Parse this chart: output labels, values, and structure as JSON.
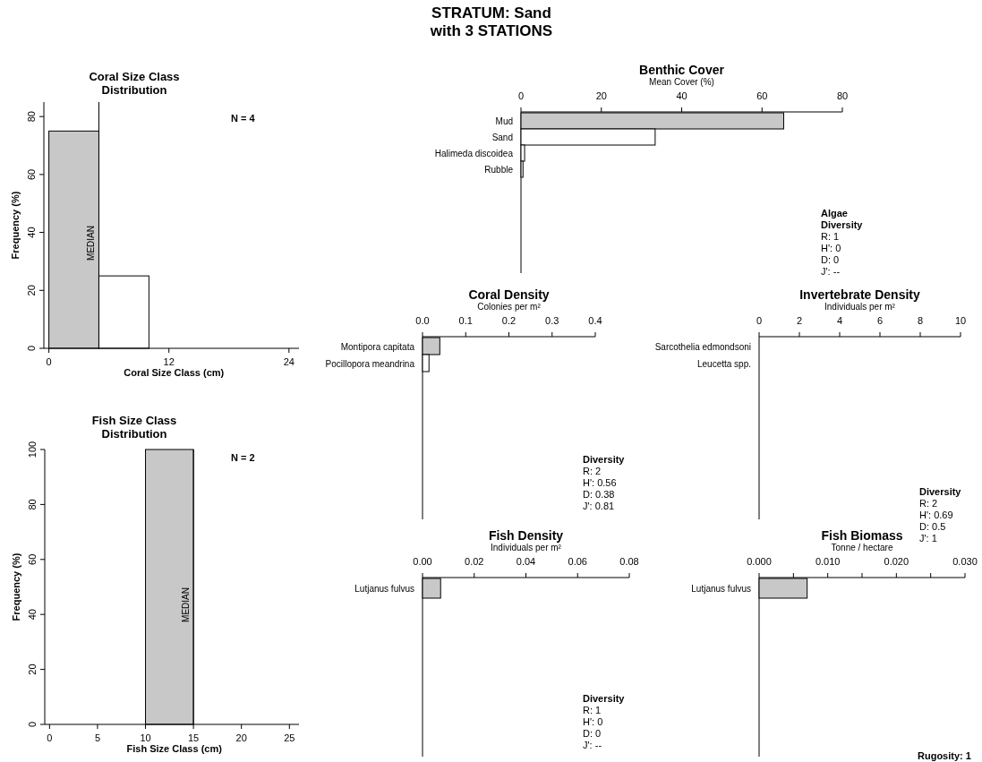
{
  "chart_data": [
    {
      "type": "other",
      "title": "STRATUM: Sand\nwith 3 STATIONS",
      "annotations": [
        "Rugosity: 1"
      ]
    },
    {
      "type": "histogram",
      "title": "Coral Size Class\nDistribution",
      "xlabel": "Coral Size Class (cm)",
      "ylabel": "Frequency (%)",
      "bins": [
        0,
        5,
        10
      ],
      "values": [
        75,
        25
      ],
      "colors": [
        "#c8c8c8",
        "#ffffff"
      ],
      "xlim": [
        -0.5,
        25
      ],
      "xticks": [
        0,
        12,
        24
      ],
      "ylim": [
        0,
        85
      ],
      "yticks": [
        0,
        20,
        40,
        60,
        80
      ],
      "ref_lines": [
        {
          "axis": "x",
          "value": 5,
          "label": "MEDIAN"
        }
      ],
      "annotations": [
        "N = 4"
      ]
    },
    {
      "type": "histogram",
      "title": "Fish Size Class\nDistribution",
      "xlabel": "Fish Size Class (cm)",
      "ylabel": "Frequency (%)",
      "bins": [
        10,
        15
      ],
      "values": [
        100
      ],
      "colors": [
        "#c8c8c8"
      ],
      "xlim": [
        -0.5,
        26
      ],
      "xticks": [
        0,
        5,
        10,
        15,
        20,
        25
      ],
      "ylim": [
        0,
        100
      ],
      "yticks": [
        0,
        20,
        40,
        60,
        80,
        100
      ],
      "ref_lines": [
        {
          "axis": "x",
          "value": 15,
          "label": "MEDIAN"
        }
      ],
      "annotations": [
        "N = 2"
      ]
    },
    {
      "type": "bar",
      "orientation": "horizontal",
      "title": "Benthic Cover",
      "xlabel": "Mean Cover (%)",
      "categories": [
        "Mud",
        "Sand",
        "Halimeda discoidea",
        "Rubble"
      ],
      "values": [
        65.4,
        33.4,
        0.9,
        0.5
      ],
      "colors": [
        "#c8c8c8",
        "#ffffff",
        "#ffffff",
        "#ffffff"
      ],
      "xlim": [
        0,
        80
      ],
      "xticks": [
        0,
        20,
        40,
        60,
        80
      ],
      "annotations": [
        "Algae\nDiversity",
        "R: 1",
        "H': 0",
        "D: 0",
        "J': --"
      ]
    },
    {
      "type": "bar",
      "orientation": "horizontal",
      "title": "Coral Density",
      "xlabel": "Colonies per m²",
      "categories": [
        "Montipora capitata",
        "Pocillopora meandrina"
      ],
      "values": [
        0.04,
        0.015
      ],
      "colors": [
        "#c8c8c8",
        "#ffffff"
      ],
      "xlim": [
        0,
        0.4
      ],
      "xticks": [
        {
          "value": 0,
          "label": "0.0"
        },
        0.1,
        0.2,
        0.3,
        0.4
      ],
      "annotations": [
        "Diversity",
        "R: 2",
        "H': 0.56",
        "D: 0.38",
        "J': 0.81"
      ]
    },
    {
      "type": "bar",
      "orientation": "horizontal",
      "title": "Invertebrate Density",
      "xlabel": "Individuals per m²",
      "categories": [
        "Sarcothelia edmondsoni",
        "Leucetta spp."
      ],
      "values": [
        0,
        0
      ],
      "xlim": [
        0,
        10
      ],
      "xticks": [
        0,
        2,
        4,
        6,
        8,
        10
      ],
      "annotations": [
        "Diversity",
        "R: 2",
        "H': 0.69",
        "D: 0.5",
        "J': 1"
      ]
    },
    {
      "type": "bar",
      "orientation": "horizontal",
      "title": "Fish Density",
      "xlabel": "Individuals per m²",
      "categories": [
        "Lutjanus fulvus"
      ],
      "values": [
        0.007
      ],
      "colors": [
        "#c8c8c8"
      ],
      "xlim": [
        0,
        0.08
      ],
      "xticks": [
        {
          "value": 0,
          "label": "0.00"
        },
        0.02,
        0.04,
        0.06,
        0.08
      ],
      "annotations": [
        "Diversity",
        "R: 1",
        "H': 0",
        "D: 0",
        "J': --"
      ]
    },
    {
      "type": "bar",
      "orientation": "horizontal",
      "title": "Fish Biomass",
      "xlabel": "Tonne / hectare",
      "categories": [
        "Lutjanus fulvus"
      ],
      "values": [
        0.007
      ],
      "colors": [
        "#c8c8c8"
      ],
      "xlim": [
        0,
        0.03
      ],
      "xticks": [
        {
          "value": 0,
          "label": "0.000"
        },
        {
          "value": 0.005,
          "label": null
        },
        {
          "value": 0.01,
          "label": "0.010"
        },
        {
          "value": 0.015,
          "label": null
        },
        {
          "value": 0.02,
          "label": "0.020"
        },
        {
          "value": 0.025,
          "label": null
        },
        {
          "value": 0.03,
          "label": "0.030"
        }
      ]
    }
  ]
}
